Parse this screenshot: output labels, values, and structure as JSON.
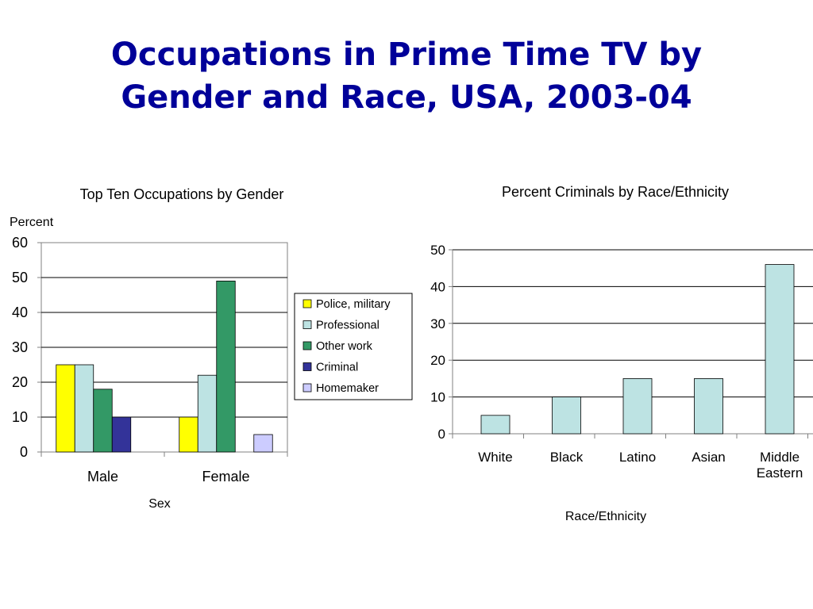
{
  "slide": {
    "title_line1": "Occupations in Prime Time TV by",
    "title_line2": "Gender and Race, USA, 2003-04"
  },
  "colors": {
    "title": "#000099",
    "police_military": "#ffff00",
    "professional": "#bde3e3",
    "other_work": "#339966",
    "criminal": "#333399",
    "homemaker": "#ccccff"
  },
  "chart_data": [
    {
      "type": "bar",
      "title": "Top Ten Occupations by Gender",
      "ylabel": "Percent",
      "xlabel": "Sex",
      "categories": [
        "Male",
        "Female"
      ],
      "ylim": [
        0,
        60
      ],
      "yticks": [
        0,
        10,
        20,
        30,
        40,
        50,
        60
      ],
      "grid": true,
      "legend": "right",
      "series": [
        {
          "name": "Police, military",
          "color": "#ffff00",
          "values": [
            25,
            10
          ]
        },
        {
          "name": "Professional",
          "color": "#bde3e3",
          "values": [
            25,
            22
          ]
        },
        {
          "name": "Other work",
          "color": "#339966",
          "values": [
            18,
            49
          ]
        },
        {
          "name": "Criminal",
          "color": "#333399",
          "values": [
            10,
            0
          ]
        },
        {
          "name": "Homemaker",
          "color": "#ccccff",
          "values": [
            0,
            5
          ]
        }
      ]
    },
    {
      "type": "bar",
      "title": "Percent Criminals by Race/Ethnicity",
      "ylabel": "",
      "xlabel": "Race/Ethnicity",
      "categories": [
        "White",
        "Black",
        "Latino",
        "Asian",
        "Middle Eastern"
      ],
      "category_lines": [
        [
          "White"
        ],
        [
          "Black"
        ],
        [
          "Latino"
        ],
        [
          "Asian"
        ],
        [
          "Middle",
          "Eastern"
        ]
      ],
      "ylim": [
        0,
        50
      ],
      "yticks": [
        0,
        10,
        20,
        30,
        40,
        50
      ],
      "grid": true,
      "legend": "none",
      "series": [
        {
          "color": "#bde3e3",
          "values": [
            5,
            10,
            15,
            15,
            46
          ]
        }
      ]
    }
  ]
}
